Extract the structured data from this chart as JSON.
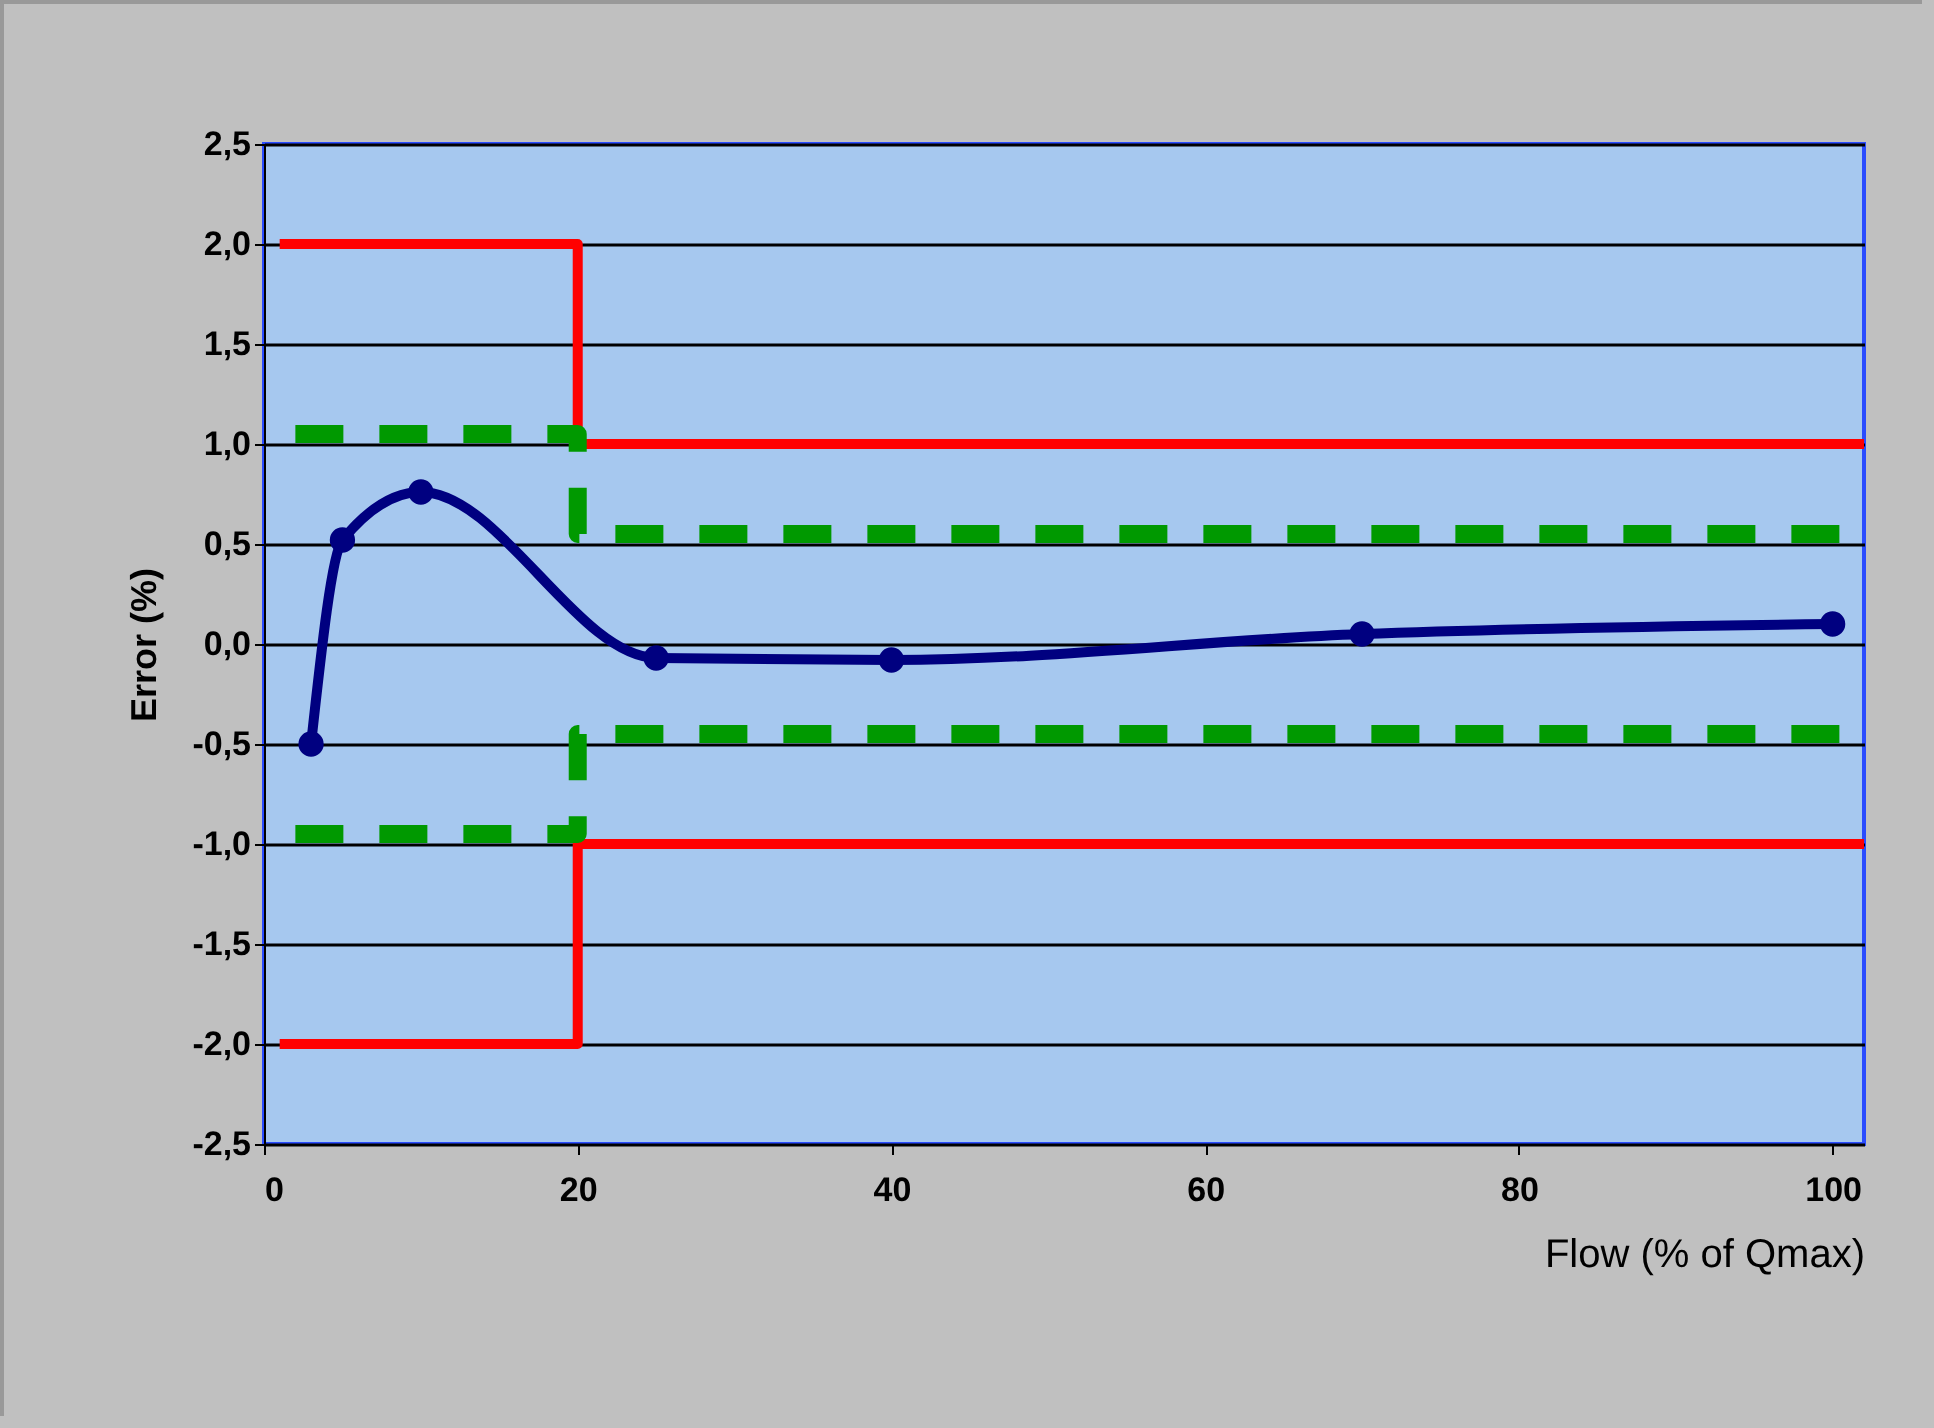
{
  "chart_data": {
    "type": "line",
    "xlabel": "Flow (% of Qmax)",
    "ylabel": "Error (%)",
    "xlim": [
      0,
      102
    ],
    "xticks": [
      0,
      20,
      40,
      60,
      80,
      100
    ],
    "ylim": [
      -2.5,
      2.5
    ],
    "yticks": [
      {
        "value": -2.5,
        "label": "-2,5"
      },
      {
        "value": -2,
        "label": "-2,0"
      },
      {
        "value": -1.5,
        "label": "-1,5"
      },
      {
        "value": -1,
        "label": "-1,0"
      },
      {
        "value": -0.5,
        "label": "-0,5"
      },
      {
        "value": 0,
        "label": "0,0"
      },
      {
        "value": 0.5,
        "label": "0,5"
      },
      {
        "value": 1,
        "label": "1,0"
      },
      {
        "value": 1.5,
        "label": "1,5"
      },
      {
        "value": 2,
        "label": "2,0"
      },
      {
        "value": 2.5,
        "label": "2,5"
      }
    ],
    "grid": "y",
    "series": [
      {
        "color": "#ff0000",
        "line_style": "solid",
        "marker": "none",
        "x": [
          1,
          20,
          20,
          102
        ],
        "values": [
          2,
          2,
          1,
          1
        ]
      },
      {
        "color": "#ff0000",
        "line_style": "solid",
        "marker": "none",
        "x": [
          1,
          20,
          20,
          102
        ],
        "values": [
          -2,
          -2,
          -1,
          -1
        ]
      },
      {
        "color": "#009900",
        "line_style": "dashed",
        "marker": "none",
        "x": [
          2,
          20,
          20,
          102
        ],
        "values": [
          1.05,
          1.05,
          0.55,
          0.55
        ]
      },
      {
        "color": "#009900",
        "line_style": "dashed",
        "marker": "none",
        "x": [
          2,
          20,
          20,
          102
        ],
        "values": [
          -0.95,
          -0.95,
          -0.45,
          -0.45
        ]
      },
      {
        "color": "#000080",
        "line_style": "solid",
        "marker": "circle",
        "x": [
          3,
          5,
          10,
          25,
          40,
          70,
          100
        ],
        "values": [
          -0.5,
          0.52,
          0.76,
          -0.07,
          -0.08,
          0.05,
          0.1
        ]
      }
    ]
  }
}
